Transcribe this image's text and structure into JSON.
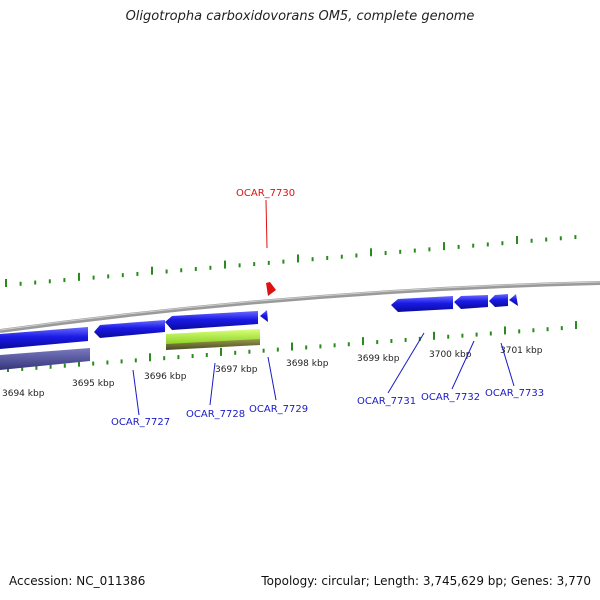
{
  "title": "Oligotropha carboxidovorans OM5, complete genome",
  "footer": {
    "accession": "Accession: NC_011386",
    "summary": "Topology: circular; Length: 3,745,629 bp; Genes: 3,770"
  },
  "colors": {
    "backbone": "#8c8c8c",
    "tick": "#2a8a1f",
    "gene_forward": "#1a1adb",
    "gene_reverse_label": "#1a1ac8",
    "highlight_gene": "#e01010",
    "rna_light": "#9be02a",
    "rna_dark": "#6b6b2a",
    "purple_band": "#4a4a9a"
  },
  "ruler": {
    "labels": [
      "3694 kbp",
      "3695 kbp",
      "3696 kbp",
      "3697 kbp",
      "3698 kbp",
      "3699 kbp",
      "3700 kbp",
      "3701 kbp"
    ]
  },
  "genes": [
    {
      "id": "OCAR_7727",
      "color": "#1a1ac8"
    },
    {
      "id": "OCAR_7728",
      "color": "#1a1ac8"
    },
    {
      "id": "OCAR_7729",
      "color": "#1a1ac8"
    },
    {
      "id": "OCAR_7730",
      "color": "#e01010"
    },
    {
      "id": "OCAR_7731",
      "color": "#1a1ac8"
    },
    {
      "id": "OCAR_7732",
      "color": "#1a1ac8"
    },
    {
      "id": "OCAR_7733",
      "color": "#1a1ac8"
    }
  ]
}
